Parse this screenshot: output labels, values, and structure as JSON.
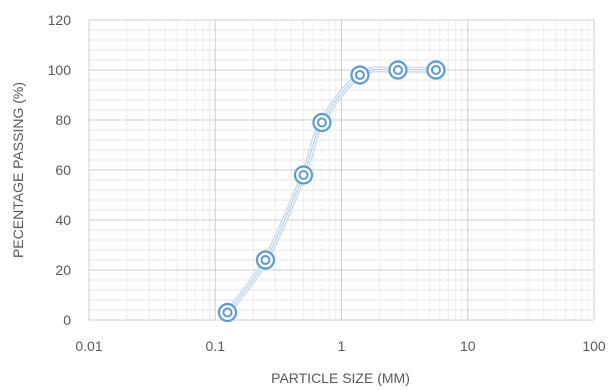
{
  "chart_data": {
    "type": "scatter",
    "xlabel": "PARTICLE SIZE (MM)",
    "ylabel": "PECENTAGE PASSING (%)",
    "x_scale": "log",
    "xlim": [
      0.01,
      100
    ],
    "ylim": [
      0,
      120
    ],
    "x_ticks": [
      "0.01",
      "0.1",
      "1",
      "10",
      "100"
    ],
    "y_ticks": [
      "0",
      "20",
      "40",
      "60",
      "80",
      "100",
      "120"
    ],
    "y_minor_step": 4,
    "grid": true,
    "legend": "none",
    "marker_style": "double-circle",
    "line_style": "smoothed",
    "series": [
      {
        "x": [
          0.125,
          0.25,
          0.5,
          0.7,
          1.4,
          2.8,
          5.6
        ],
        "y": [
          3,
          24,
          58,
          79,
          98,
          100,
          100
        ],
        "color": "#5b9bd5"
      }
    ]
  }
}
